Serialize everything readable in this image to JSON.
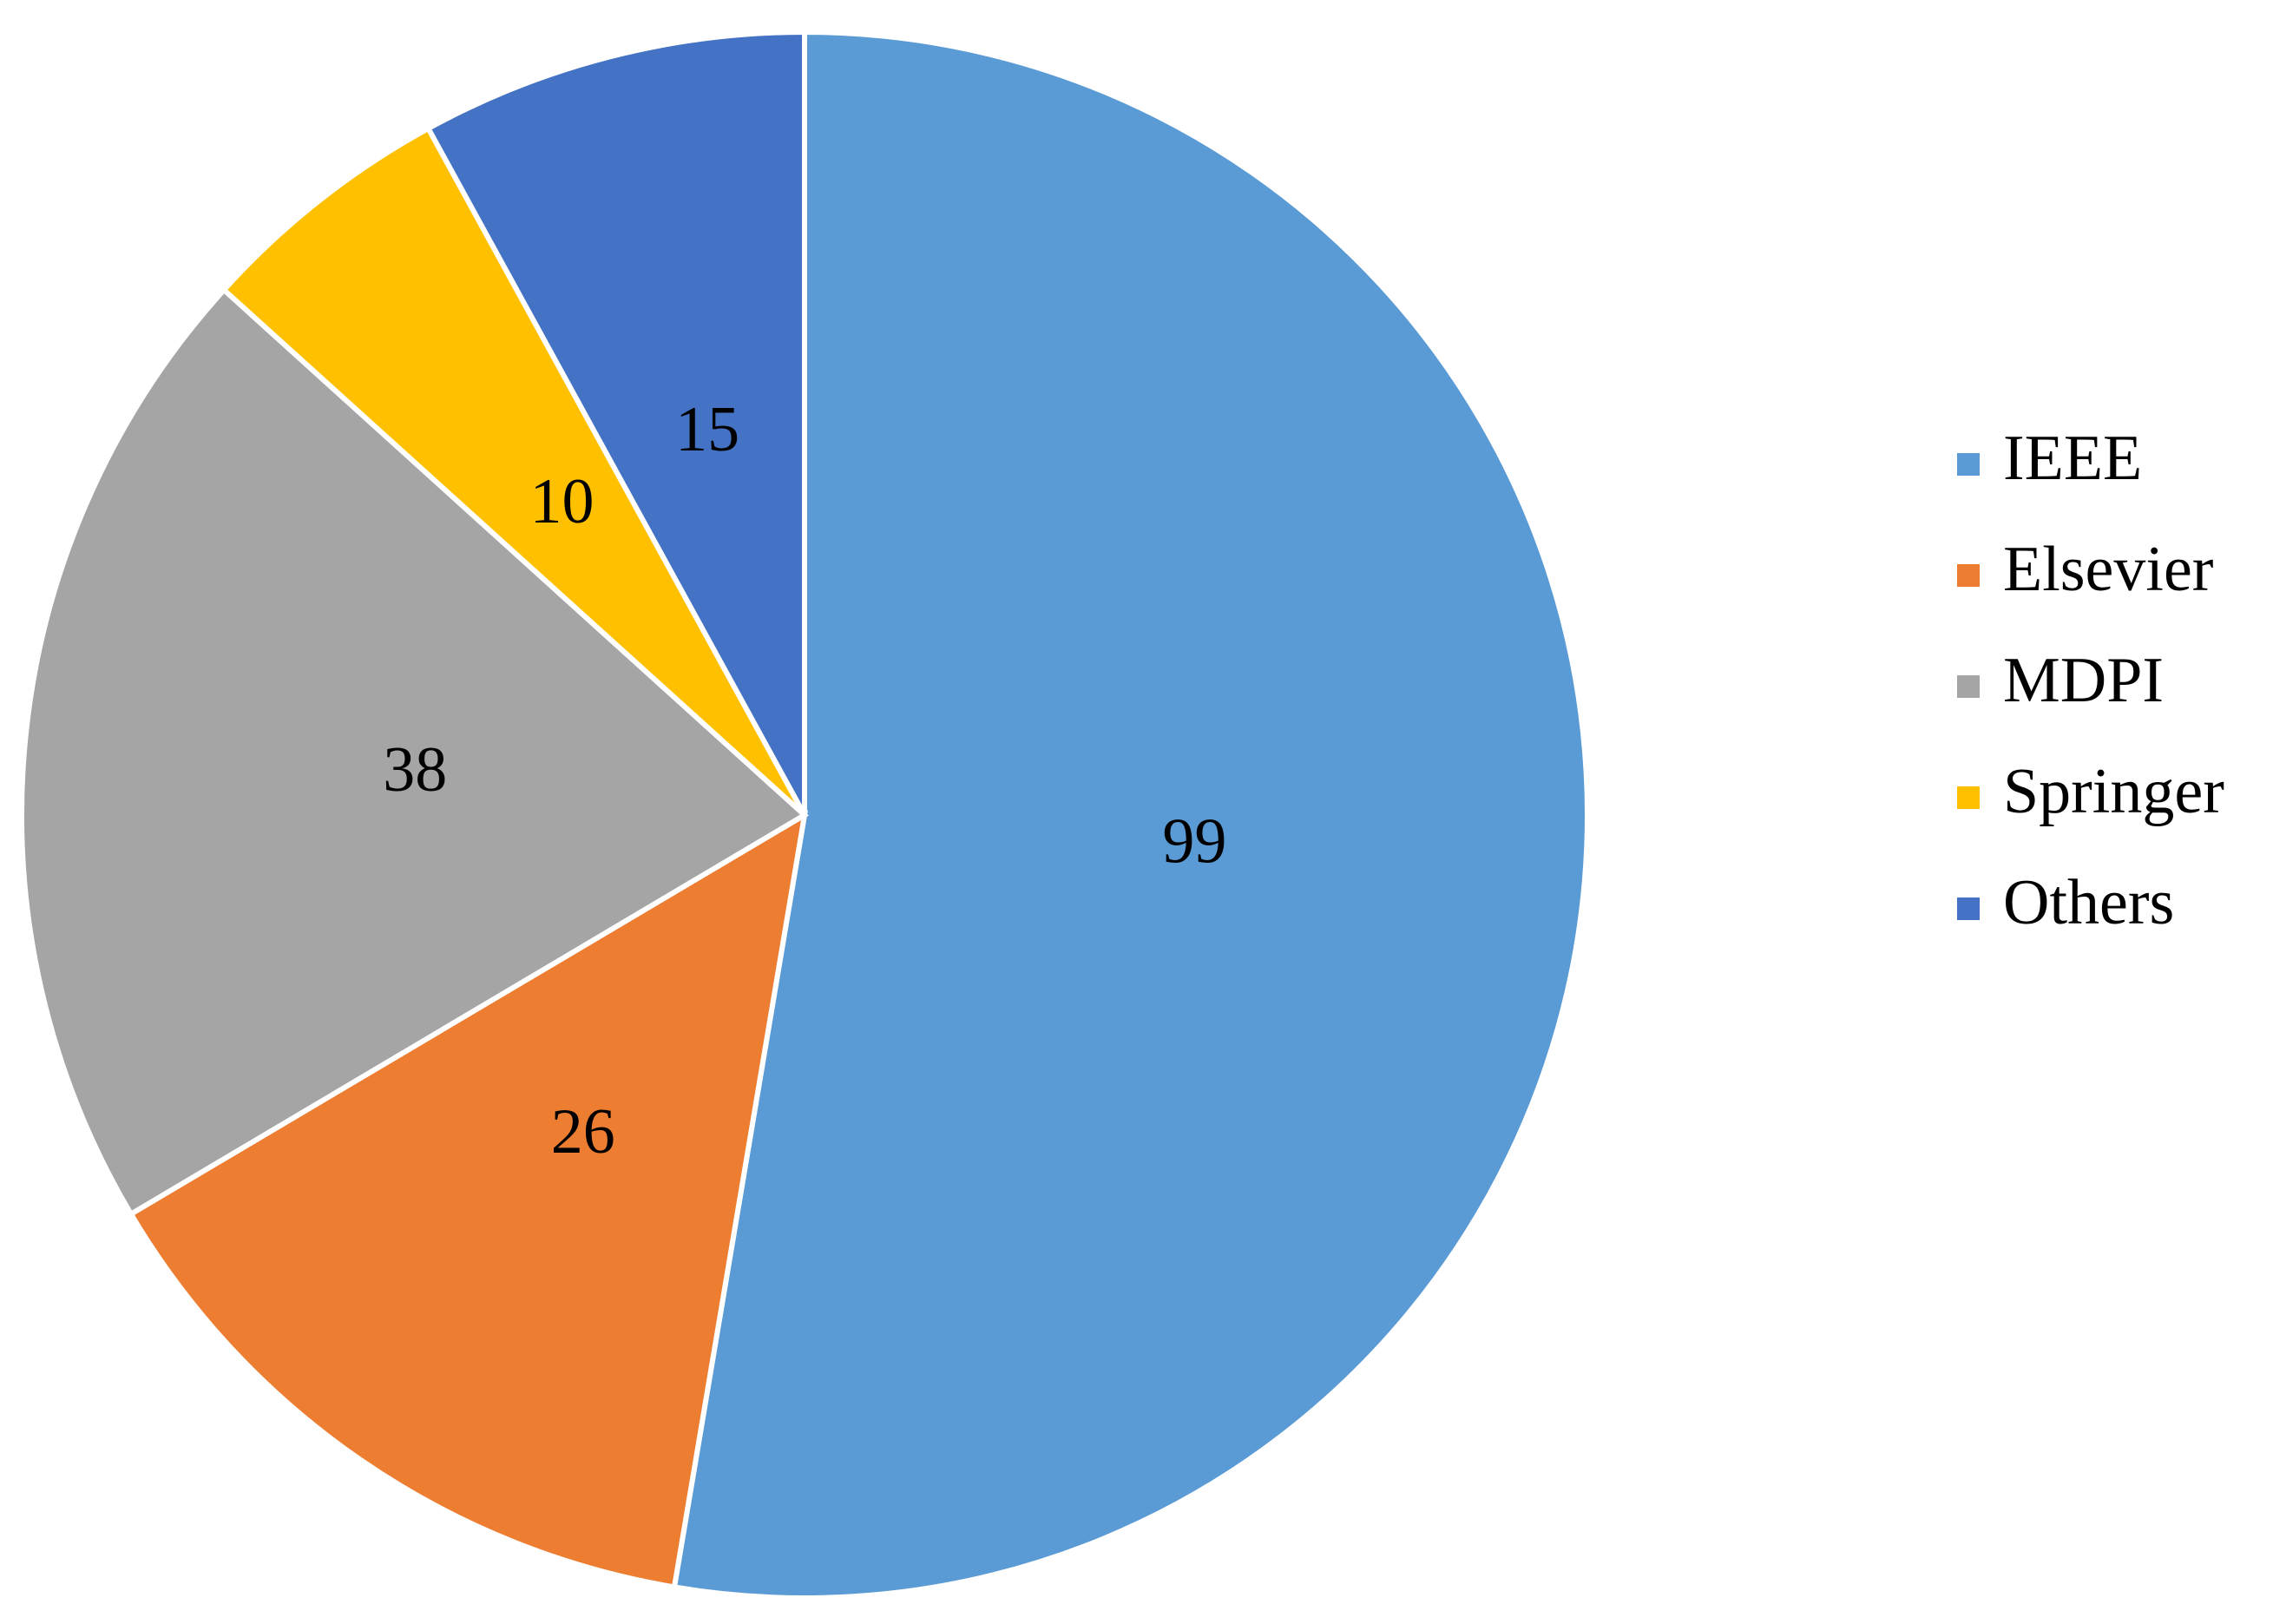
{
  "chart_data": {
    "type": "pie",
    "categories": [
      "IEEE",
      "Elsevier",
      "MDPI",
      "Springer",
      "Others"
    ],
    "values": [
      99,
      26,
      38,
      10,
      15
    ],
    "colors": [
      "#5b9bd5",
      "#ed7d31",
      "#a5a5a5",
      "#ffc000",
      "#4472c4"
    ],
    "legend": "right"
  }
}
